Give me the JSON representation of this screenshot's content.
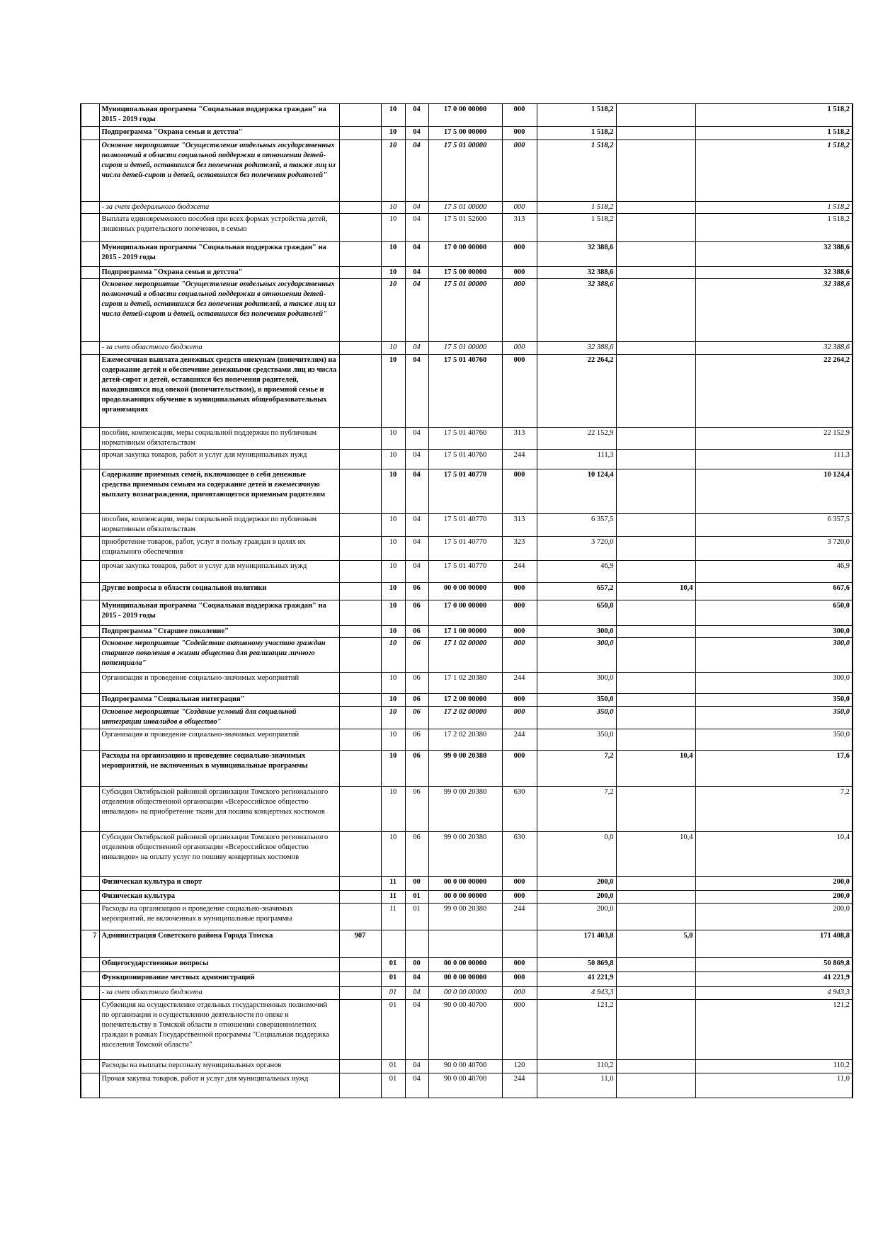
{
  "table": {
    "rows": [
      [
        "",
        "Муниципальная программа \"Социальная поддержка граждан\" на 2015 - 2019 годы",
        null,
        "10",
        "04",
        "17 0 00 00000",
        "000",
        "1 518,2",
        null,
        "1 518,2"
      ],
      [
        null,
        "Подпрограмма \"Охрана семьи и детства\"",
        null,
        "10",
        "04",
        "17 5 00 00000",
        "000",
        "1 518,2",
        null,
        "1 518,2"
      ],
      [
        null,
        "Основное мероприятие \"Осуществление отдельных государственных полномочий в области социальной поддержки в отношении детей-сирот и детей, оставшихся без попечения родителей, а также лиц из числа детей-сирот и детей, оставшихся без попечения родителей\"",
        null,
        "10",
        "04",
        "17 5 01 00000",
        "000",
        "1 518,2",
        null,
        "1 518,2"
      ],
      [
        null,
        "- за счет федерального бюджета",
        null,
        "10",
        "04",
        "17 5 01 00000",
        "000",
        "1 518,2",
        null,
        "1 518,2"
      ],
      [
        null,
        "Выплата единовременного пособия при всех формах устройства детей, лишенных родительского попечения, в семью",
        null,
        "10",
        "04",
        "17 5 01 52600",
        "313",
        "1 518,2",
        null,
        "1 518,2"
      ],
      [
        null,
        "Муниципальная программа \"Социальная поддержка граждан\" на 2015 - 2019 годы",
        null,
        "10",
        "04",
        "17 0 00 00000",
        "000",
        "32 388,6",
        null,
        "32 388,6"
      ],
      [
        null,
        "Подпрограмма \"Охрана семьи и детства\"",
        null,
        "10",
        "04",
        "17 5 00 00000",
        "000",
        "32 388,6",
        null,
        "32 388,6"
      ],
      [
        null,
        "Основное мероприятие \"Осуществление отдельных государственных полномочий в области социальной поддержки в отношении детей-сирот и детей, оставшихся без попечения родителей, а также лиц из числа детей-сирот и детей, оставшихся без попечения родителей\"",
        null,
        "10",
        "04",
        "17 5 01 00000",
        "000",
        "32 388,6",
        null,
        "32 388,6"
      ],
      [
        null,
        "- за счет областного бюджета",
        null,
        "10",
        "04",
        "17 5 01 00000",
        "000",
        "32 388,6",
        null,
        "32 388,6"
      ],
      [
        null,
        "Ежемесячная выплата денежных средств опекунам (попечителям) на содержание детей и обеспечение денежными средствами лиц из числа детей-сирот и детей, оставшихся без попечения родителей, находившихся под опекой (попечительством), в приемной семье и продолжающих обучение в муниципальных общеобразовательных организациях",
        null,
        "10",
        "04",
        "17 5 01 40760",
        "000",
        "22 264,2",
        null,
        "22 264,2"
      ],
      [
        null,
        "пособия, компенсации, меры социальной поддержки по публичным нормативным обязательствам",
        null,
        "10",
        "04",
        "17 5 01 40760",
        "313",
        "22 152,9",
        null,
        "22 152,9"
      ],
      [
        null,
        "прочая закупка товаров, работ и услуг для муниципальных нужд",
        null,
        "10",
        "04",
        "17 5 01 40760",
        "244",
        "111,3",
        null,
        "111,3"
      ],
      [
        null,
        "Содержание приемных семей, включающее в себя денежные средства приемным семьям на содержание детей и ежемесячную выплату вознаграждения, причитающегося приемным родителям",
        null,
        "10",
        "04",
        "17 5 01 40770",
        "000",
        "10 124,4",
        null,
        "10 124,4"
      ],
      [
        null,
        "пособия, компенсации, меры социальной поддержки по публичным нормативным обязательствам",
        null,
        "10",
        "04",
        "17 5 01 40770",
        "313",
        "6 357,5",
        null,
        "6 357,5"
      ],
      [
        null,
        "приобретение товаров, работ, услуг в пользу граждан в целях их социального обеспечения",
        null,
        "10",
        "04",
        "17 5 01 40770",
        "323",
        "3 720,0",
        null,
        "3 720,0"
      ],
      [
        null,
        "прочая закупка товаров, работ и услуг для муниципальных нужд",
        null,
        "10",
        "04",
        "17 5 01 40770",
        "244",
        "46,9",
        null,
        "46,9"
      ],
      [
        null,
        "Другие вопросы в области социальной политики",
        null,
        "10",
        "06",
        "00 0 00 00000",
        "000",
        "657,2",
        "10,4",
        "667,6"
      ],
      [
        null,
        "Муниципальная программа \"Социальная поддержка граждан\" на 2015 - 2019 годы",
        null,
        "10",
        "06",
        "17 0 00 00000",
        "000",
        "650,0",
        null,
        "650,0"
      ],
      [
        null,
        "Подпрограмма \"Старшее поколение\"",
        null,
        "10",
        "06",
        "17 1 00 00000",
        "000",
        "300,0",
        null,
        "300,0"
      ],
      [
        null,
        "Основное мероприятие \"Содействие активному участию граждан старшего поколения в жизни общества для реализации личного потенциала\"",
        null,
        "10",
        "06",
        "17 1 02 00000",
        "000",
        "300,0",
        null,
        "300,0"
      ],
      [
        null,
        "Организация и проведение социально-значимых мероприятий",
        null,
        "10",
        "06",
        "17 1 02 20380",
        "244",
        "300,0",
        null,
        "300,0"
      ],
      [
        null,
        "Подпрограмма \"Социальная интеграция\"",
        null,
        "10",
        "06",
        "17 2 00 00000",
        "000",
        "350,0",
        null,
        "350,0"
      ],
      [
        null,
        "Основное мероприятие \"Создание условий для социальной интеграции инвалидов в общество\"",
        null,
        "10",
        "06",
        "17 2 02 00000",
        "000",
        "350,0",
        null,
        "350,0"
      ],
      [
        null,
        "Организация и проведение социально-значимых мероприятий",
        null,
        "10",
        "06",
        "17 2 02 20380",
        "244",
        "350,0",
        null,
        "350,0"
      ],
      [
        null,
        "Расходы на организацию и проведение социально-значимых мероприятий, не включенных в муниципальные программы",
        null,
        "10",
        "06",
        "99 0 00 20380",
        "000",
        "7,2",
        "10,4",
        "17,6"
      ],
      [
        null,
        "Субсидия Октябрьской районной организации Томского регионального отделения общественной организации «Всероссийское общество инвалидов» на приобретение ткани для пошива концертных костюмов",
        null,
        "10",
        "06",
        "99 0 00 20380",
        "630",
        "7,2",
        null,
        "7,2"
      ],
      [
        null,
        "Субсидия Октябрьской районной организации Томского регионального отделения общественной организации «Всероссийское общество инвалидов» на оплату услуг по пошиву концертных костюмов",
        null,
        "10",
        "06",
        "99 0 00 20380",
        "630",
        "0,0",
        "10,4",
        "10,4"
      ],
      [
        null,
        "Физическая культура и спорт",
        null,
        "11",
        "00",
        "00 0 00 00000",
        "000",
        "200,0",
        null,
        "200,0"
      ],
      [
        null,
        "Физическая культура",
        null,
        "11",
        "01",
        "00 0 00 00000",
        "000",
        "200,0",
        null,
        "200,0"
      ],
      [
        null,
        "Расходы на организацию и проведение социально-значимых мероприятий, не включенных в муниципальные программы",
        null,
        "11",
        "01",
        "99 0 00 20380",
        "244",
        "200,0",
        null,
        "200,0"
      ],
      [
        "7",
        "Администрация Советского района Города Томска",
        "907",
        null,
        null,
        null,
        null,
        "171 403,8",
        "5,0",
        "171 408,8"
      ],
      [
        null,
        "Общегосударственные вопросы",
        null,
        "01",
        "00",
        "00 0 00 00000",
        "000",
        "50 869,8",
        null,
        "50 869,8"
      ],
      [
        null,
        "Функционирование местных администраций",
        null,
        "01",
        "04",
        "00 0 00 00000",
        "000",
        "41 221,9",
        null,
        "41 221,9"
      ],
      [
        null,
        "- за счет областного бюджета",
        null,
        "01",
        "04",
        "00 0 00 00000",
        "000",
        "4 943,3",
        null,
        "4 943,3"
      ],
      [
        null,
        "Субвенция на осуществление отдельных государственных полномочий по организации и осуществлению деятельности по опеке и попечительству в Томской области в отношении совершеннолетних граждан в рамках Государственной программы \"Социальная поддержка населения Томской области\"",
        null,
        "01",
        "04",
        "90 0 00 40700",
        "000",
        "121,2",
        null,
        "121,2"
      ],
      [
        null,
        "Расходы на выплаты персоналу муниципальных органов",
        null,
        "01",
        "04",
        "90 0 00 40700",
        "120",
        "110,2",
        null,
        "110,2"
      ],
      [
        null,
        "Прочая закупка товаров, работ и услуг для муниципальных нужд",
        null,
        "01",
        "04",
        "90 0 00 40700",
        "244",
        "11,0",
        null,
        "11,0"
      ]
    ]
  }
}
